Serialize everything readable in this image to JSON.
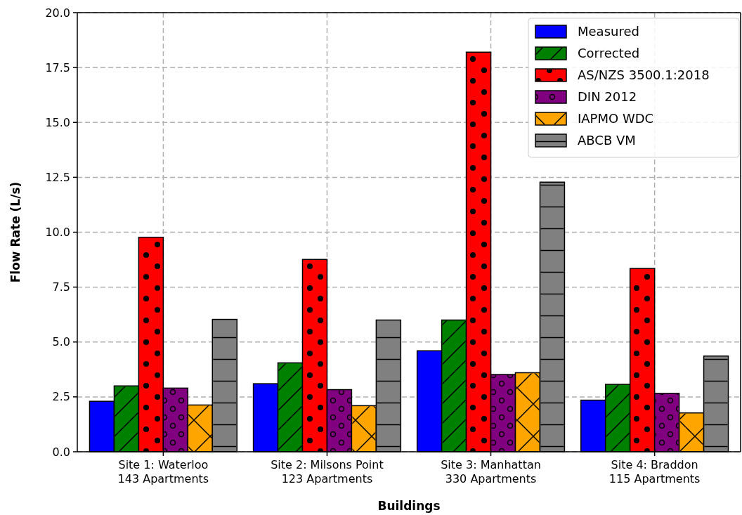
{
  "chart_data": {
    "type": "bar",
    "xlabel": "Buildings",
    "ylabel": "Flow Rate (L/s)",
    "categories": [
      "Site 1: Waterloo\n143 Apartments",
      "Site 2: Milsons Point\n123 Apartments",
      "Site 3: Manhattan\n330 Apartments",
      "Site 4: Braddon\n115 Apartments"
    ],
    "series": [
      {
        "name": "Measured",
        "color": "#0000ff",
        "values": [
          2.3,
          3.1,
          4.6,
          2.35
        ]
      },
      {
        "name": "Corrected",
        "color": "#008000",
        "values": [
          3.0,
          4.05,
          6.0,
          3.07
        ]
      },
      {
        "name": "AS/NZS 3500.1:2018",
        "color": "#ff0000",
        "values": [
          9.77,
          8.76,
          18.2,
          8.35
        ]
      },
      {
        "name": "DIN 2012",
        "color": "#800080",
        "values": [
          2.9,
          2.83,
          3.52,
          2.66
        ]
      },
      {
        "name": "IAPMO WDC",
        "color": "#ffa500",
        "values": [
          2.13,
          2.1,
          3.6,
          1.77
        ]
      },
      {
        "name": "ABCB VM",
        "color": "#808080",
        "values": [
          6.03,
          6.0,
          12.28,
          4.36
        ]
      }
    ],
    "ylim": [
      0,
      20
    ],
    "yticks": [
      {
        "value": 0,
        "label": "0.0"
      },
      {
        "value": 2.5,
        "label": "2.5"
      },
      {
        "value": 5,
        "label": "5.0"
      },
      {
        "value": 7.5,
        "label": "7.5"
      },
      {
        "value": 10,
        "label": "10.0"
      },
      {
        "value": 12.5,
        "label": "12.5"
      },
      {
        "value": 15,
        "label": "15.0"
      },
      {
        "value": 17.5,
        "label": "17.5"
      },
      {
        "value": 20,
        "label": "20.0"
      }
    ],
    "grid": true,
    "legend": "top right"
  }
}
